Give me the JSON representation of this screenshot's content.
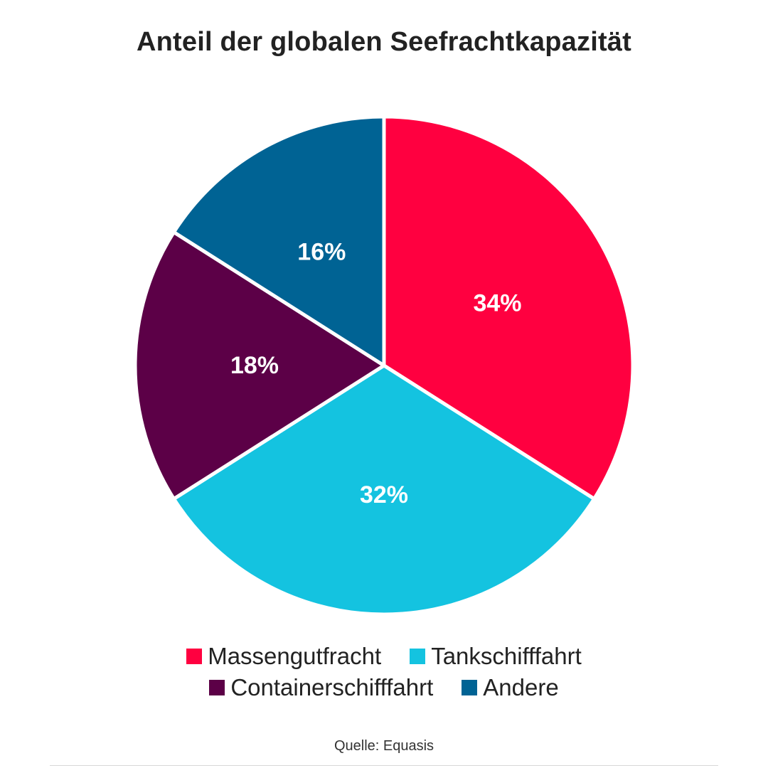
{
  "chart_data": {
    "type": "pie",
    "title": "Anteil der globalen Seefrachtkapazität",
    "source": "Quelle: Equasis",
    "slices": [
      {
        "label": "Massengutfracht",
        "value": 34,
        "display": "34%",
        "color": "#ff0040"
      },
      {
        "label": "Tankschifffahrt",
        "value": 32,
        "display": "32%",
        "color": "#14c3e0"
      },
      {
        "label": "Containerschifffahrt",
        "value": 18,
        "display": "18%",
        "color": "#5c0047"
      },
      {
        "label": "Andere",
        "value": 16,
        "display": "16%",
        "color": "#006394"
      }
    ],
    "legend_position": "bottom",
    "start_angle": "12 o'clock",
    "direction": "clockwise"
  }
}
